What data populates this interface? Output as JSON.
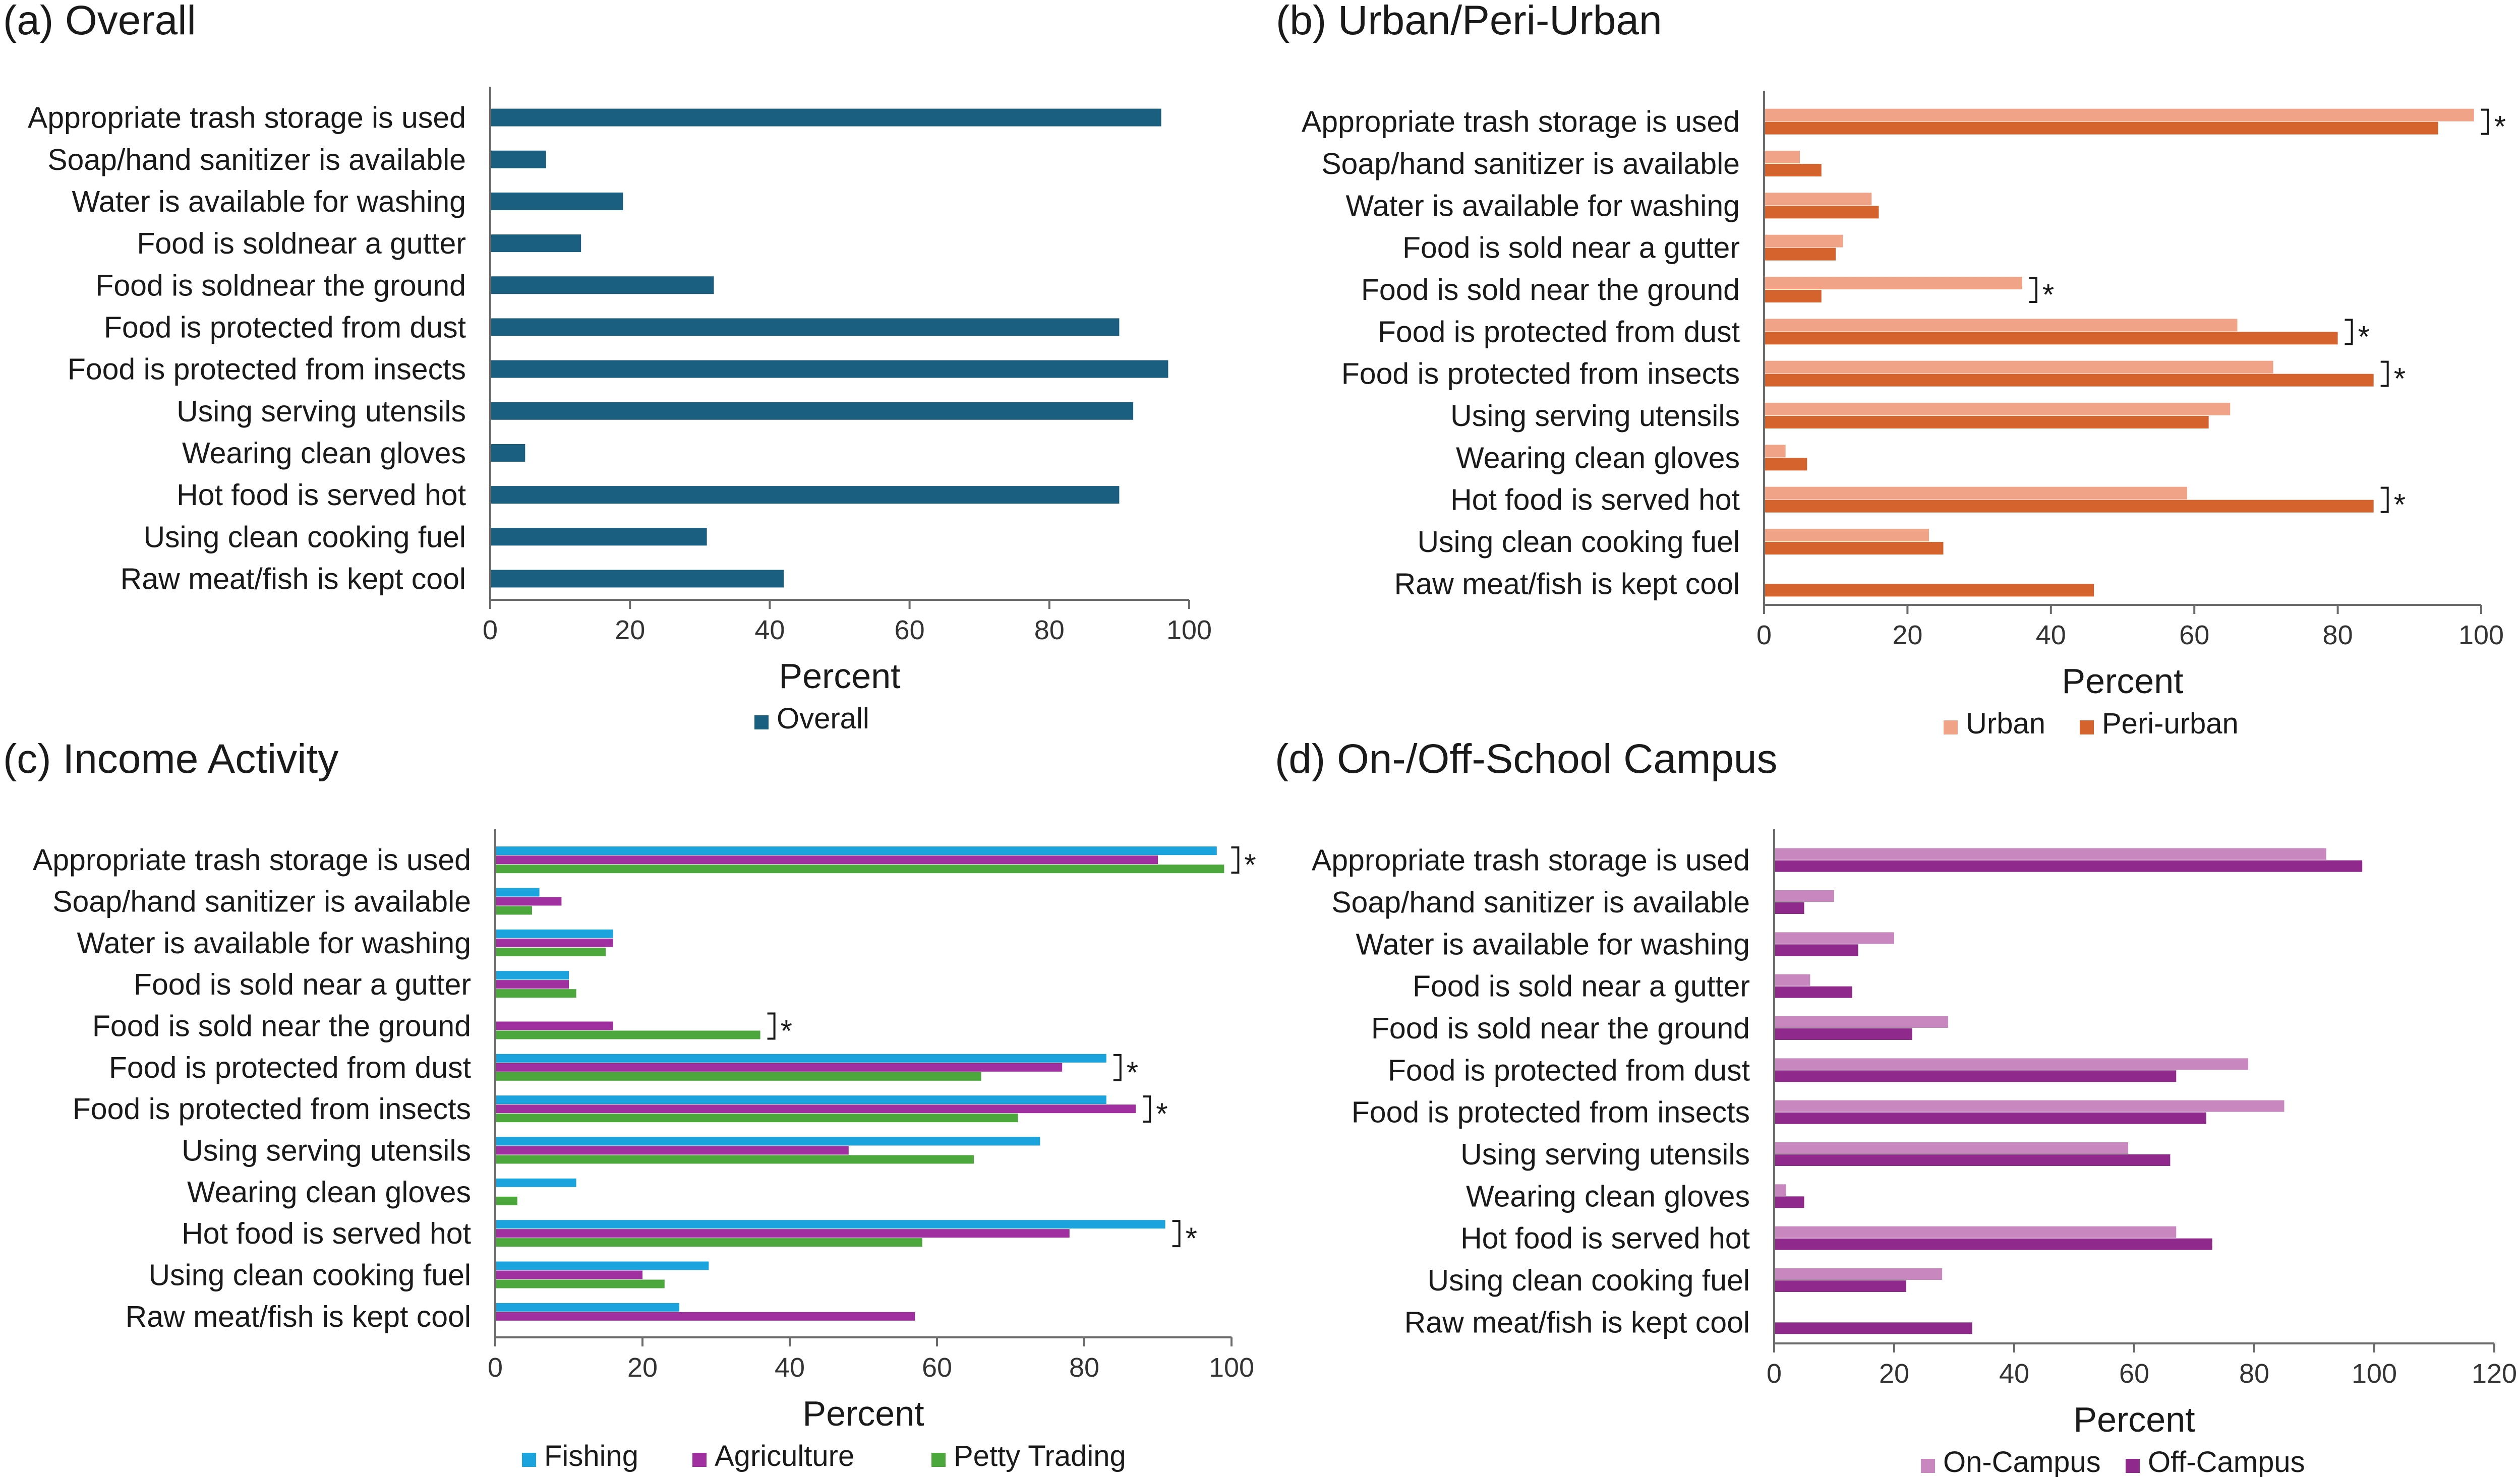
{
  "chart_data": [
    {
      "panel_title": "(a) Overall",
      "type": "bar",
      "orientation": "horizontal",
      "categories": [
        "Appropriate trash storage is used",
        "Soap/hand sanitizer is available",
        "Water is available for washing",
        "Food is soldnear a gutter",
        "Food is soldnear the ground",
        "Food is protected from dust",
        "Food is protected from insects",
        "Using serving utensils",
        "Wearing clean gloves",
        "Hot food is served hot",
        "Using clean cooking fuel",
        "Raw meat/fish is kept cool"
      ],
      "series": [
        {
          "name": "Overall",
          "color": "#1a5f7f",
          "values": [
            96,
            8,
            19,
            13,
            32,
            90,
            97,
            92,
            5,
            90,
            31,
            42
          ]
        }
      ],
      "xlim": [
        0,
        100
      ],
      "xticks": [
        0,
        20,
        40,
        60,
        80,
        100
      ],
      "xlabel": "Percent",
      "significance": []
    },
    {
      "panel_title": "(b) Urban/Peri-Urban",
      "type": "bar",
      "orientation": "horizontal",
      "categories": [
        "Appropriate trash storage is used",
        "Soap/hand sanitizer is available",
        "Water is available for washing",
        "Food is sold near a gutter",
        "Food is sold near the ground",
        "Food is protected from dust",
        "Food is protected from insects",
        "Using serving utensils",
        "Wearing clean gloves",
        "Hot food is served hot",
        "Using clean cooking fuel",
        "Raw meat/fish is kept cool"
      ],
      "series": [
        {
          "name": "Urban",
          "color": "#f0a387",
          "values": [
            99,
            5,
            15,
            11,
            36,
            66,
            71,
            65,
            3,
            59,
            23,
            0
          ]
        },
        {
          "name": "Peri-urban",
          "color": "#d4632e",
          "values": [
            94,
            8,
            16,
            10,
            8,
            80,
            85,
            62,
            6,
            85,
            25,
            46
          ]
        }
      ],
      "xlim": [
        0,
        100
      ],
      "xticks": [
        0,
        20,
        40,
        60,
        80,
        100
      ],
      "xlabel": "Percent",
      "significance": [
        0,
        4,
        5,
        6,
        9
      ],
      "significance_mark": "*"
    },
    {
      "panel_title": "(c) Income Activity",
      "type": "bar",
      "orientation": "horizontal",
      "categories": [
        "Appropriate trash storage is used",
        "Soap/hand sanitizer is available",
        "Water is available for washing",
        "Food is sold near a gutter",
        "Food is sold near the ground",
        "Food is protected from dust",
        "Food is protected from insects",
        "Using serving utensils",
        "Wearing clean gloves",
        "Hot food is served hot",
        "Using clean cooking fuel",
        "Raw meat/fish is kept cool"
      ],
      "series": [
        {
          "name": "Fishing",
          "color": "#1aa3dc",
          "values": [
            98,
            6,
            16,
            10,
            0,
            83,
            83,
            74,
            11,
            91,
            29,
            25
          ]
        },
        {
          "name": "Agriculture",
          "color": "#a0309f",
          "values": [
            90,
            9,
            16,
            10,
            16,
            77,
            87,
            48,
            0,
            78,
            20,
            57
          ]
        },
        {
          "name": "Petty Trading",
          "color": "#4ca83c",
          "values": [
            99,
            5,
            15,
            11,
            36,
            66,
            71,
            65,
            3,
            58,
            23,
            0
          ]
        }
      ],
      "xlim": [
        0,
        100
      ],
      "xticks": [
        0,
        20,
        40,
        60,
        80,
        100
      ],
      "xlabel": "Percent",
      "significance": [
        0,
        4,
        5,
        6,
        9
      ],
      "significance_mark": "*"
    },
    {
      "panel_title": "(d) On-/Off-School Campus",
      "type": "bar",
      "orientation": "horizontal",
      "categories": [
        "Appropriate trash storage is used",
        "Soap/hand sanitizer is available",
        "Water is available for washing",
        "Food is sold near a gutter",
        "Food is sold near the ground",
        "Food is protected from dust",
        "Food is protected from insects",
        "Using serving utensils",
        "Wearing clean gloves",
        "Hot food is served hot",
        "Using clean cooking fuel",
        "Raw meat/fish is kept cool"
      ],
      "series": [
        {
          "name": "On-Campus",
          "color": "#c887bf",
          "values": [
            92,
            10,
            20,
            6,
            29,
            79,
            85,
            59,
            2,
            67,
            28,
            0
          ]
        },
        {
          "name": "Off-Campus",
          "color": "#8f2a8c",
          "values": [
            98,
            5,
            14,
            13,
            23,
            67,
            72,
            66,
            5,
            73,
            22,
            33
          ]
        }
      ],
      "xlim": [
        0,
        120
      ],
      "xticks": [
        0,
        20,
        40,
        60,
        80,
        100,
        120
      ],
      "xlabel": "Percent",
      "significance": []
    }
  ]
}
